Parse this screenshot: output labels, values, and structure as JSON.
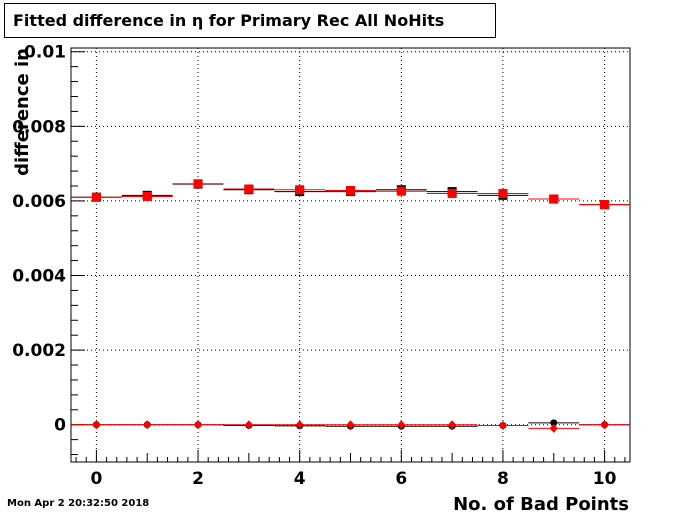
{
  "title": "Fitted difference in  η for Primary Rec All NoHits",
  "timestamp": "Mon Apr  2 20:32:50 2018",
  "chart_data": {
    "type": "scatter",
    "title": "Fitted difference in  η for Primary Rec All NoHits",
    "xlabel": "No. of Bad Points",
    "ylabel": "difference in",
    "xlim": [
      -0.5,
      10.5
    ],
    "ylim": [
      -0.001,
      0.0101
    ],
    "x_ticks": [
      0,
      2,
      4,
      6,
      8,
      10
    ],
    "y_ticks": [
      0,
      0.002,
      0.004,
      0.006,
      0.008,
      0.01
    ],
    "x_tick_labels": [
      "0",
      "2",
      "4",
      "6",
      "8",
      "10"
    ],
    "y_tick_labels": [
      "0",
      "0.002",
      "0.004",
      "0.006",
      "0.008",
      "0.01"
    ],
    "grid": true,
    "x": [
      0,
      1,
      2,
      3,
      4,
      5,
      6,
      7,
      8,
      9,
      10
    ],
    "series": [
      {
        "marker": "square",
        "color": "#000000",
        "values": [
          0.0061,
          0.00615,
          0.00645,
          0.0063,
          0.00625,
          0.00625,
          0.0063,
          0.00625,
          0.00615,
          0.00605,
          0.0059
        ]
      },
      {
        "marker": "square",
        "color": "#ff0000",
        "values": [
          0.0061,
          0.00612,
          0.00646,
          0.00632,
          0.0063,
          0.00628,
          0.00626,
          0.0062,
          0.0062,
          0.00605,
          0.0059
        ]
      },
      {
        "marker": "circle",
        "color": "#000000",
        "values": [
          0.0,
          0.0,
          0.0,
          -2e-05,
          -3e-05,
          -4e-05,
          -4e-05,
          -4e-05,
          -2e-05,
          5e-05,
          0.0
        ]
      },
      {
        "marker": "diamond",
        "color": "#ff0000",
        "values": [
          0.0,
          0.0,
          0.0,
          0.0,
          0.0,
          0.0,
          0.0,
          0.0,
          -2e-05,
          -0.0001,
          0.0
        ]
      }
    ]
  }
}
